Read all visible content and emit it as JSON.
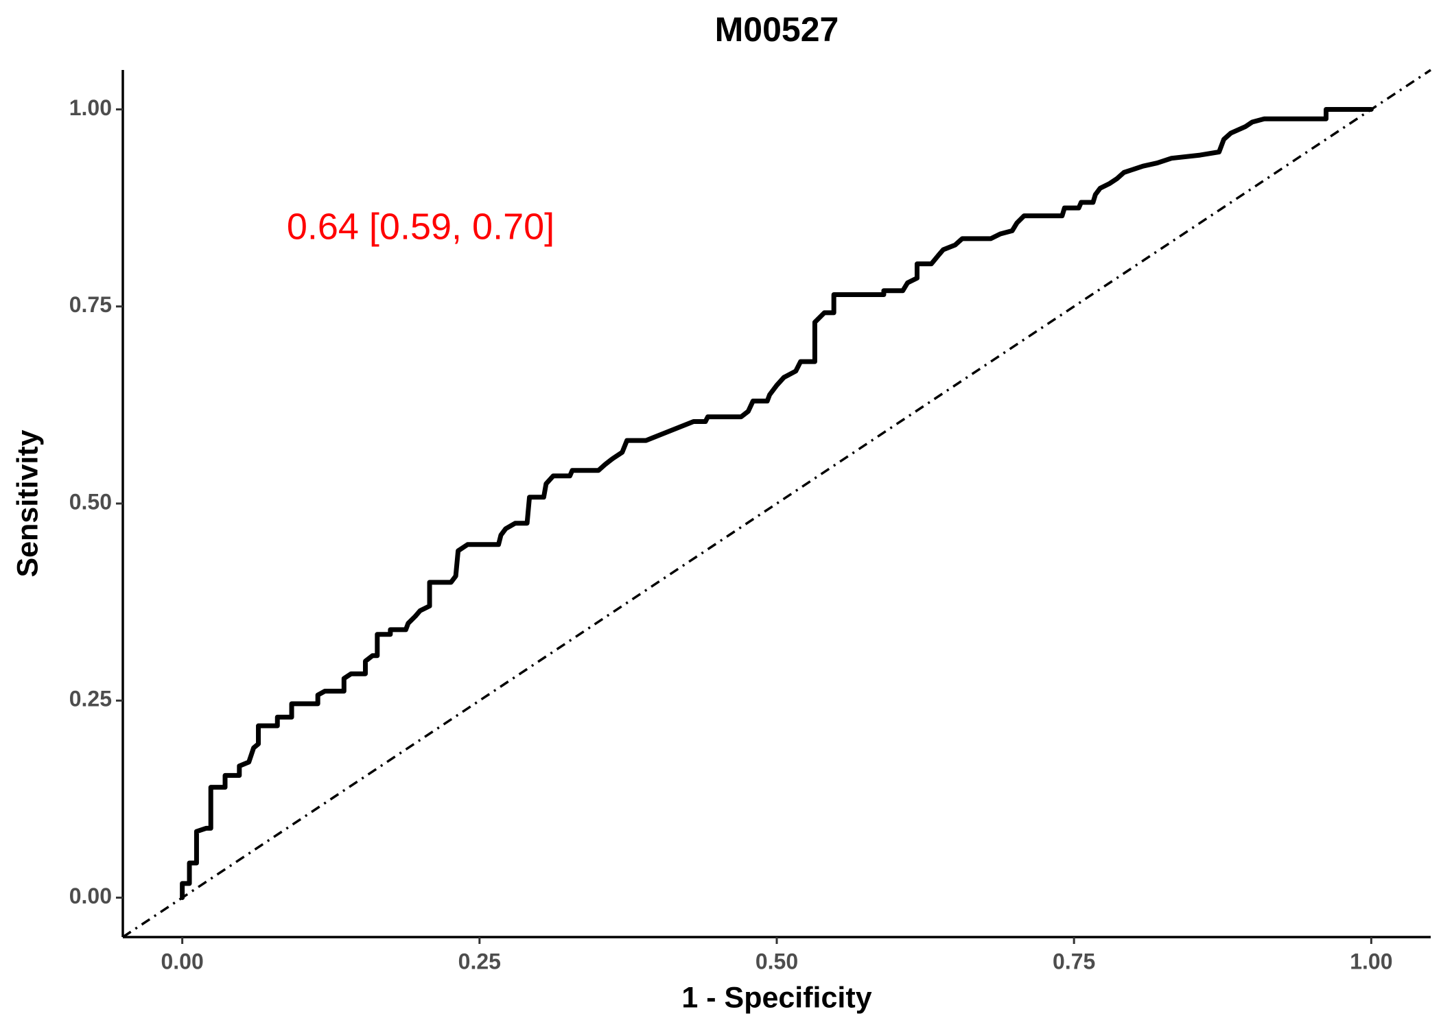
{
  "chart_data": {
    "type": "line",
    "title": "M00527",
    "x_label": "1 - Specificity",
    "y_label": "Sensitivity",
    "annotation": "0.64 [0.59, 0.70]",
    "annotation_color": "#ff0000",
    "color": "#000000",
    "xlim": [
      -0.05,
      1.05
    ],
    "ylim": [
      -0.05,
      1.05
    ],
    "xticks": [
      {
        "value": 0,
        "label": "0.00"
      },
      {
        "value": 0.25,
        "label": "0.25"
      },
      {
        "value": 0.5,
        "label": "0.50"
      },
      {
        "value": 0.75,
        "label": "0.75"
      },
      {
        "value": 1,
        "label": "1.00"
      }
    ],
    "yticks": [
      {
        "value": 0,
        "label": "0.00"
      },
      {
        "value": 0.25,
        "label": "0.25"
      },
      {
        "value": 0.5,
        "label": "0.50"
      },
      {
        "value": 0.75,
        "label": "0.75"
      },
      {
        "value": 1,
        "label": "1.00"
      }
    ],
    "grid": false,
    "x": [
      0,
      0,
      0.006,
      0.006,
      0.012,
      0.012,
      0.02,
      0.024,
      0.024,
      0.036,
      0.036,
      0.048,
      0.048,
      0.056,
      0.06,
      0.064,
      0.064,
      0.08,
      0.08,
      0.092,
      0.092,
      0.114,
      0.114,
      0.12,
      0.136,
      0.136,
      0.142,
      0.154,
      0.154,
      0.16,
      0.164,
      0.164,
      0.175,
      0.175,
      0.188,
      0.19,
      0.196,
      0.2,
      0.208,
      0.208,
      0.226,
      0.23,
      0.232,
      0.24,
      0.266,
      0.268,
      0.272,
      0.28,
      0.29,
      0.292,
      0.304,
      0.306,
      0.312,
      0.326,
      0.328,
      0.35,
      0.356,
      0.362,
      0.37,
      0.374,
      0.39,
      0.43,
      0.44,
      0.442,
      0.47,
      0.476,
      0.48,
      0.492,
      0.494,
      0.5,
      0.506,
      0.516,
      0.52,
      0.532,
      0.532,
      0.54,
      0.548,
      0.548,
      0.59,
      0.59,
      0.606,
      0.61,
      0.618,
      0.618,
      0.63,
      0.636,
      0.64,
      0.65,
      0.656,
      0.68,
      0.688,
      0.698,
      0.702,
      0.708,
      0.74,
      0.742,
      0.754,
      0.756,
      0.766,
      0.768,
      0.772,
      0.78,
      0.786,
      0.792,
      0.8,
      0.808,
      0.82,
      0.832,
      0.856,
      0.872,
      0.876,
      0.882,
      0.894,
      0.9,
      0.91,
      0.962,
      0.962,
      1.0
    ],
    "values": [
      0,
      0.018,
      0.018,
      0.044,
      0.044,
      0.084,
      0.088,
      0.088,
      0.14,
      0.14,
      0.155,
      0.155,
      0.167,
      0.172,
      0.19,
      0.195,
      0.218,
      0.218,
      0.229,
      0.229,
      0.246,
      0.246,
      0.257,
      0.262,
      0.262,
      0.278,
      0.284,
      0.284,
      0.3,
      0.307,
      0.307,
      0.334,
      0.334,
      0.34,
      0.34,
      0.348,
      0.357,
      0.364,
      0.37,
      0.4,
      0.4,
      0.408,
      0.44,
      0.448,
      0.448,
      0.46,
      0.468,
      0.475,
      0.475,
      0.508,
      0.508,
      0.525,
      0.535,
      0.535,
      0.542,
      0.542,
      0.55,
      0.557,
      0.565,
      0.58,
      0.58,
      0.604,
      0.604,
      0.61,
      0.61,
      0.617,
      0.63,
      0.63,
      0.638,
      0.65,
      0.66,
      0.668,
      0.68,
      0.68,
      0.73,
      0.742,
      0.742,
      0.765,
      0.765,
      0.77,
      0.77,
      0.78,
      0.786,
      0.804,
      0.804,
      0.815,
      0.822,
      0.828,
      0.836,
      0.836,
      0.842,
      0.846,
      0.856,
      0.865,
      0.865,
      0.875,
      0.875,
      0.882,
      0.882,
      0.892,
      0.9,
      0.906,
      0.912,
      0.92,
      0.924,
      0.928,
      0.932,
      0.938,
      0.942,
      0.946,
      0.962,
      0.97,
      0.978,
      0.984,
      0.988,
      0.988,
      1.0,
      1.0
    ]
  }
}
